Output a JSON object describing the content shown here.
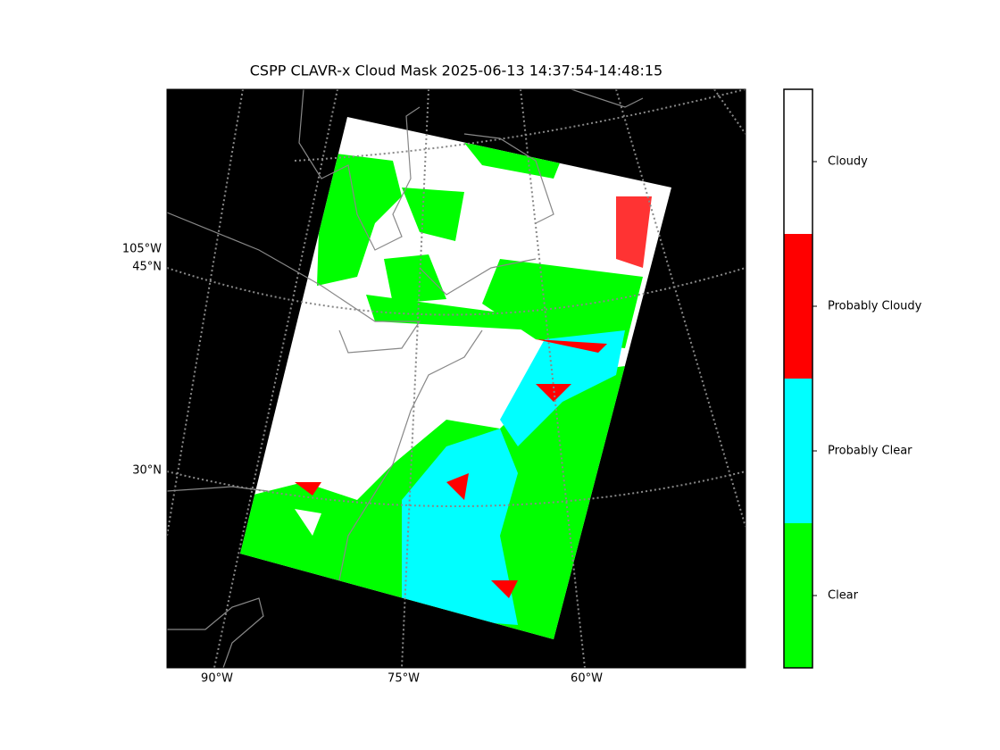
{
  "title": "CSPP CLAVR-x Cloud Mask 2025-06-13 14:37:54-14:48:15",
  "map": {
    "lon_labels": [
      "90°W",
      "75°W",
      "60°W"
    ],
    "lat_labels": [
      "105°W",
      "45°N",
      "30°N"
    ]
  },
  "colorbar": {
    "classes": [
      {
        "label": "Clear",
        "color": "#00ff00"
      },
      {
        "label": "Probably Clear",
        "color": "#00ffff"
      },
      {
        "label": "Probably Cloudy",
        "color": "#ff0000"
      },
      {
        "label": "Cloudy",
        "color": "#ffffff"
      }
    ]
  }
}
